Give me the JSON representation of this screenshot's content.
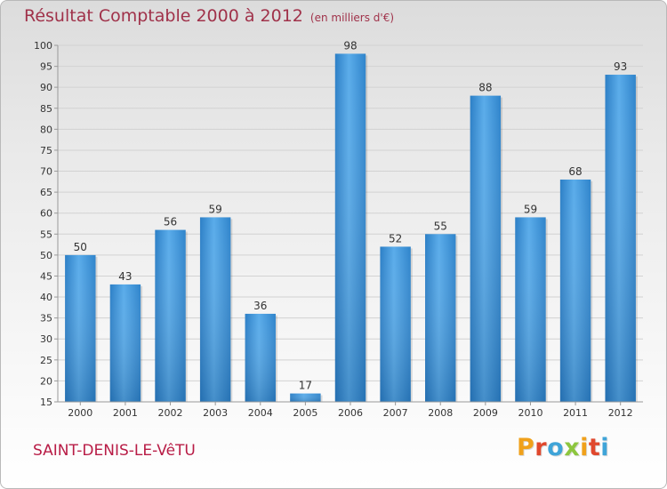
{
  "header": {
    "title": "Résultat Comptable 2000 à 2012",
    "subtitle": "(en milliers d'€)"
  },
  "footer": {
    "commune": "SAINT-DENIS-LE-VêTU",
    "brand_letters": [
      "P",
      "r",
      "o",
      "x",
      "i",
      "t",
      "i"
    ],
    "brand_colors": [
      "#f0a11b",
      "#e0482d",
      "#3fa4d8",
      "#8dc63f",
      "#f0a11b",
      "#e0482d",
      "#3fa4d8"
    ]
  },
  "chart_data": {
    "type": "bar",
    "title": "Résultat Comptable 2000 à 2012",
    "units": "(en milliers d'€)",
    "categories": [
      "2000",
      "2001",
      "2002",
      "2003",
      "2004",
      "2005",
      "2006",
      "2007",
      "2008",
      "2009",
      "2010",
      "2011",
      "2012"
    ],
    "values": [
      50,
      43,
      56,
      59,
      36,
      17,
      98,
      52,
      55,
      88,
      59,
      68,
      93
    ],
    "ylim": [
      15,
      100
    ],
    "yticks": [
      15,
      20,
      25,
      30,
      35,
      40,
      45,
      50,
      55,
      60,
      65,
      70,
      75,
      80,
      85,
      90,
      95,
      100
    ],
    "grid": true,
    "bar_color": "#3d95d8",
    "xlabel": "",
    "ylabel": ""
  }
}
